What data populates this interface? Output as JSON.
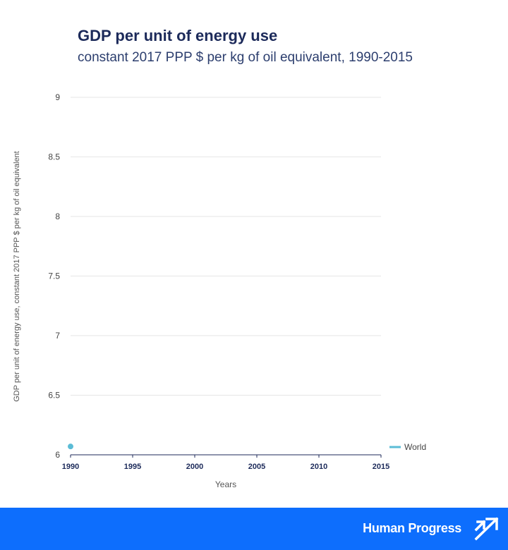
{
  "header": {
    "title": "GDP per unit of energy use",
    "subtitle": "constant 2017 PPP $ per kg of oil equivalent, 1990-2015"
  },
  "footer": {
    "brand": "Human Progress",
    "icon": "human-progress-logo-icon",
    "background": "#0d6efd"
  },
  "chart_data": {
    "type": "line",
    "xlabel": "Years",
    "ylabel": "GDP per unit of energy use, constant 2017 PPP $ per kg of oil equivalent",
    "x_ticks": [
      1990,
      1995,
      2000,
      2005,
      2010,
      2015
    ],
    "y_ticks": [
      "6",
      "6.5",
      "7",
      "7.5",
      "8",
      "8.5",
      "9"
    ],
    "xlim": [
      1990,
      2015
    ],
    "ylim": [
      6,
      9
    ],
    "grid": true,
    "legend_position": "right",
    "series": [
      {
        "name": "World",
        "color": "#5bbcd6",
        "x": [
          1990
        ],
        "y": [
          6.07
        ]
      }
    ]
  }
}
